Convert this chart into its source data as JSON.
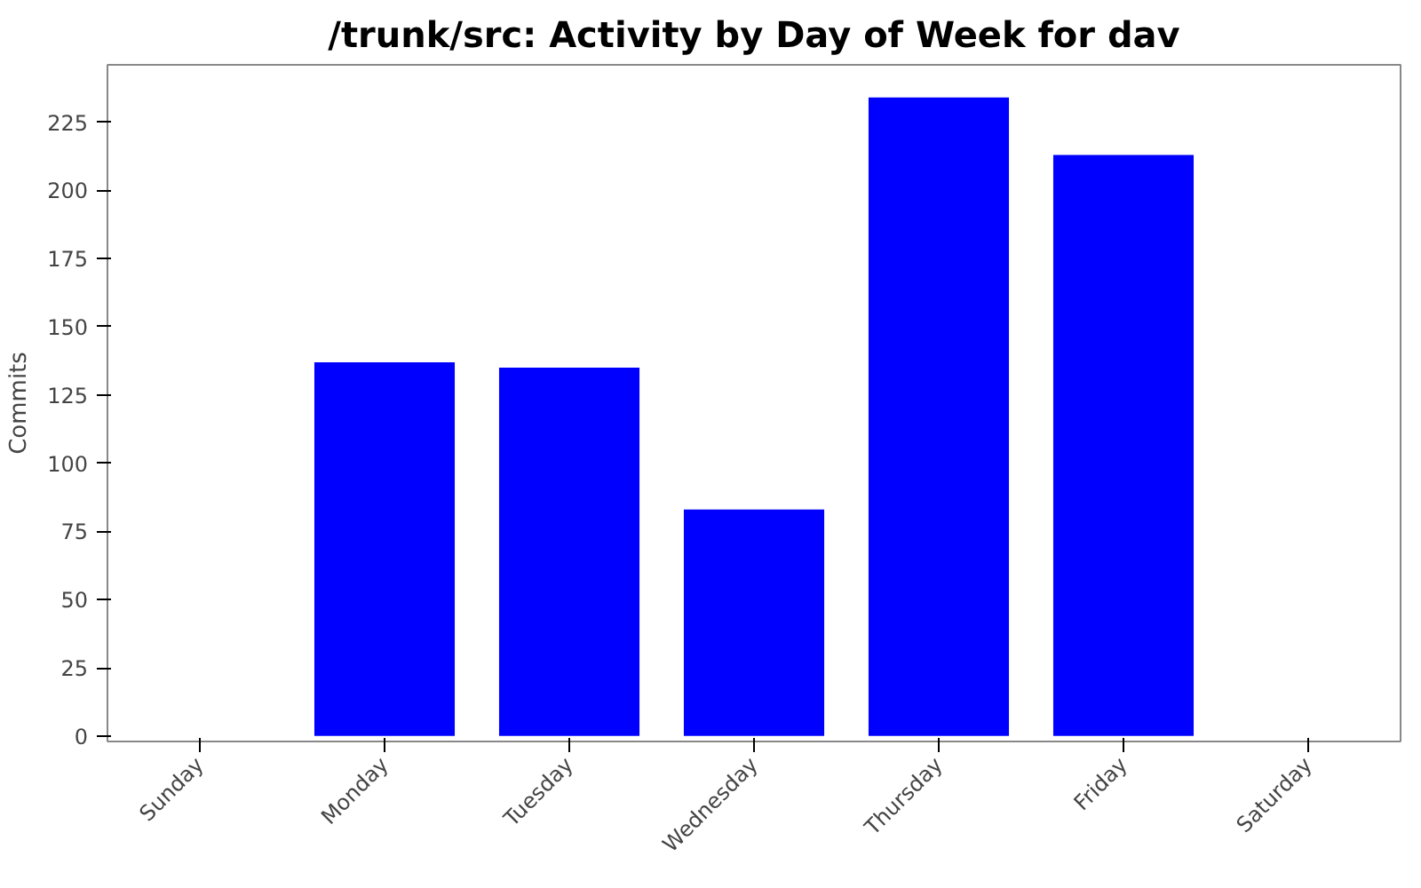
{
  "chart_data": {
    "type": "bar",
    "title": "/trunk/src: Activity by Day of Week for dav",
    "ylabel": "Commits",
    "categories": [
      "Sunday",
      "Monday",
      "Tuesday",
      "Wednesday",
      "Thursday",
      "Friday",
      "Saturday"
    ],
    "values": [
      0,
      137,
      135,
      83,
      234,
      213,
      0
    ],
    "color": "#0000ff",
    "ylim": [
      -2,
      246
    ],
    "yticks": [
      0,
      25,
      50,
      75,
      100,
      125,
      150,
      175,
      200,
      225
    ],
    "grid": false
  }
}
